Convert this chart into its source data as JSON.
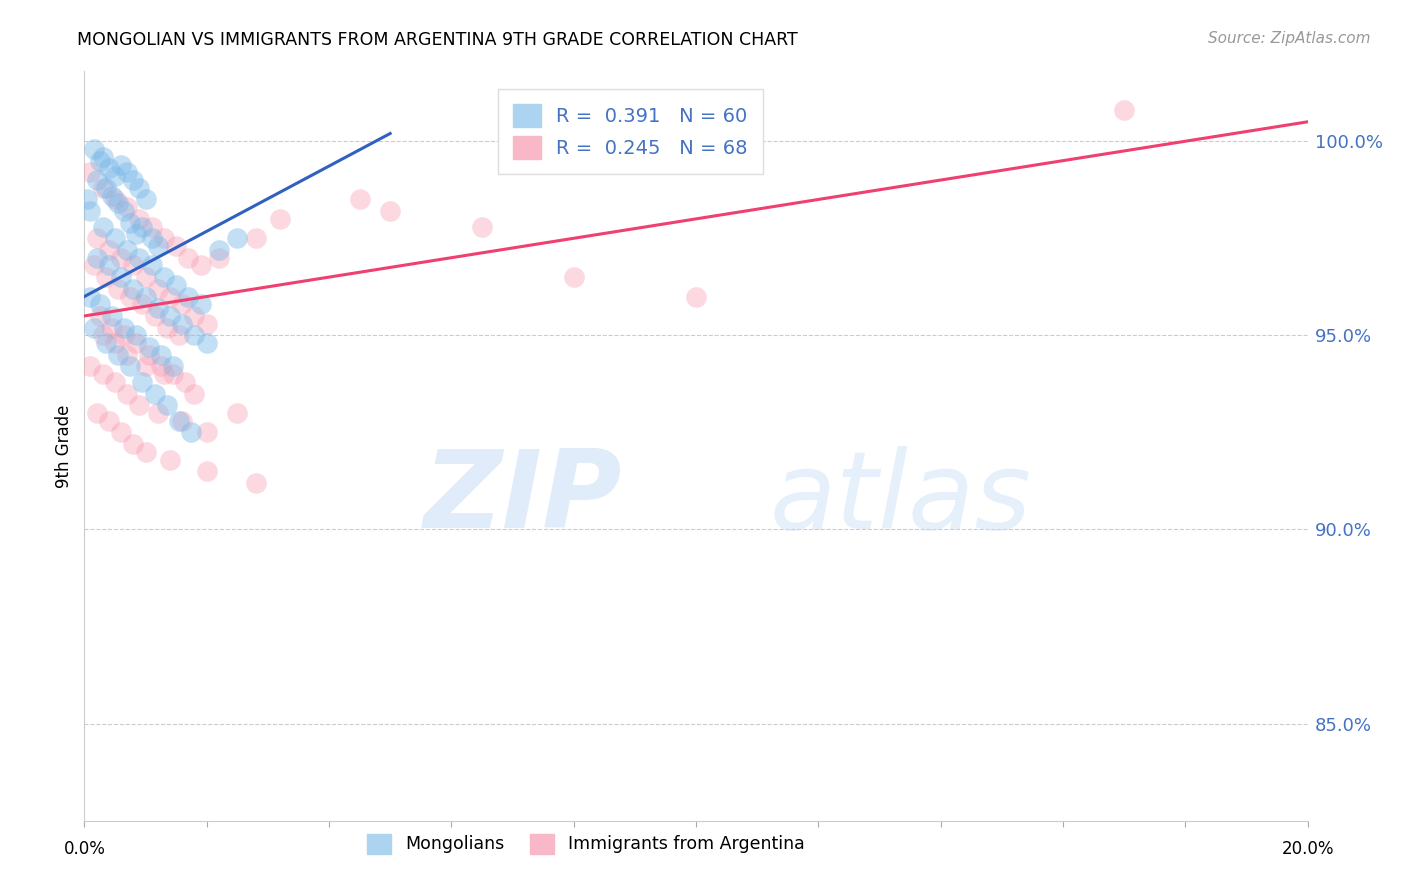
{
  "title": "MONGOLIAN VS IMMIGRANTS FROM ARGENTINA 9TH GRADE CORRELATION CHART",
  "source": "Source: ZipAtlas.com",
  "ylabel": "9th Grade",
  "yticks": [
    85.0,
    90.0,
    95.0,
    100.0
  ],
  "ytick_labels": [
    "85.0%",
    "90.0%",
    "95.0%",
    "100.0%"
  ],
  "xlim": [
    0.0,
    20.0
  ],
  "ylim": [
    82.5,
    101.8
  ],
  "blue_color": "#7ab8e8",
  "pink_color": "#f899b0",
  "blue_line_color": "#3060c0",
  "pink_line_color": "#f04070",
  "watermark_zip": "ZIP",
  "watermark_atlas": "atlas",
  "blue_line_x0": 0.0,
  "blue_line_y0": 96.0,
  "blue_line_x1": 5.0,
  "blue_line_y1": 100.2,
  "pink_line_x0": 0.0,
  "pink_line_y0": 95.5,
  "pink_line_x1": 20.0,
  "pink_line_y1": 100.5,
  "blue_scatter_x": [
    0.15,
    0.25,
    0.3,
    0.4,
    0.5,
    0.6,
    0.7,
    0.8,
    0.9,
    1.0,
    0.2,
    0.35,
    0.45,
    0.55,
    0.65,
    0.75,
    0.85,
    0.95,
    1.1,
    1.2,
    0.1,
    0.3,
    0.5,
    0.7,
    0.9,
    1.1,
    1.3,
    1.5,
    1.7,
    1.9,
    0.2,
    0.4,
    0.6,
    0.8,
    1.0,
    1.2,
    1.4,
    1.6,
    1.8,
    2.0,
    0.1,
    0.25,
    0.45,
    0.65,
    0.85,
    1.05,
    1.25,
    1.45,
    2.2,
    2.5,
    0.15,
    0.35,
    0.55,
    0.75,
    0.95,
    1.15,
    1.35,
    1.55,
    1.75,
    0.05
  ],
  "blue_scatter_y": [
    99.8,
    99.5,
    99.6,
    99.3,
    99.1,
    99.4,
    99.2,
    99.0,
    98.8,
    98.5,
    99.0,
    98.8,
    98.6,
    98.4,
    98.2,
    97.9,
    97.6,
    97.8,
    97.5,
    97.3,
    98.2,
    97.8,
    97.5,
    97.2,
    97.0,
    96.8,
    96.5,
    96.3,
    96.0,
    95.8,
    97.0,
    96.8,
    96.5,
    96.2,
    96.0,
    95.7,
    95.5,
    95.3,
    95.0,
    94.8,
    96.0,
    95.8,
    95.5,
    95.2,
    95.0,
    94.7,
    94.5,
    94.2,
    97.2,
    97.5,
    95.2,
    94.8,
    94.5,
    94.2,
    93.8,
    93.5,
    93.2,
    92.8,
    92.5,
    98.5
  ],
  "pink_scatter_x": [
    0.1,
    0.3,
    0.5,
    0.7,
    0.9,
    1.1,
    1.3,
    1.5,
    1.7,
    1.9,
    0.2,
    0.4,
    0.6,
    0.8,
    1.0,
    1.2,
    1.4,
    1.6,
    1.8,
    2.0,
    0.15,
    0.35,
    0.55,
    0.75,
    0.95,
    1.15,
    1.35,
    1.55,
    2.2,
    2.8,
    0.25,
    0.45,
    0.65,
    0.85,
    1.05,
    1.25,
    1.45,
    1.65,
    3.2,
    4.5,
    0.1,
    0.3,
    0.5,
    0.7,
    0.9,
    1.2,
    1.6,
    2.0,
    5.0,
    6.5,
    0.2,
    0.4,
    0.6,
    0.8,
    1.0,
    1.4,
    2.0,
    2.8,
    8.0,
    10.0,
    0.3,
    0.5,
    0.7,
    1.0,
    1.3,
    1.8,
    2.5,
    17.0
  ],
  "pink_scatter_y": [
    99.2,
    98.8,
    98.5,
    98.3,
    98.0,
    97.8,
    97.5,
    97.3,
    97.0,
    96.8,
    97.5,
    97.2,
    97.0,
    96.8,
    96.5,
    96.2,
    96.0,
    95.8,
    95.5,
    95.3,
    96.8,
    96.5,
    96.2,
    96.0,
    95.8,
    95.5,
    95.2,
    95.0,
    97.0,
    97.5,
    95.5,
    95.2,
    95.0,
    94.8,
    94.5,
    94.2,
    94.0,
    93.8,
    98.0,
    98.5,
    94.2,
    94.0,
    93.8,
    93.5,
    93.2,
    93.0,
    92.8,
    92.5,
    98.2,
    97.8,
    93.0,
    92.8,
    92.5,
    92.2,
    92.0,
    91.8,
    91.5,
    91.2,
    96.5,
    96.0,
    95.0,
    94.8,
    94.5,
    94.2,
    94.0,
    93.5,
    93.0,
    100.8
  ]
}
